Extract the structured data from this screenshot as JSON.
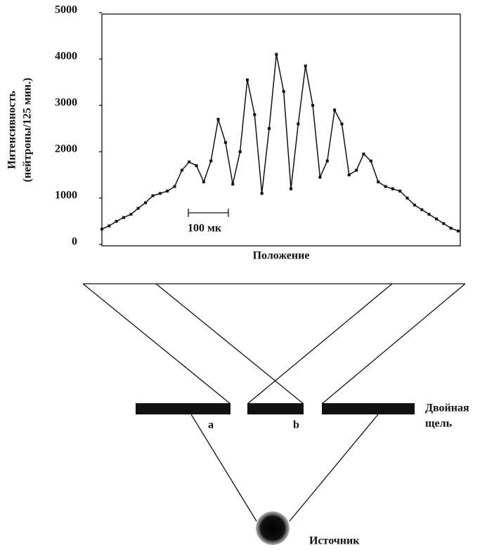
{
  "chart_data": {
    "type": "line",
    "ylabel": [
      "Интенсивность",
      "(нейтроны/125 мин.)"
    ],
    "xlabel": "Положение",
    "annotation": "100 мк",
    "ylim": [
      0,
      5000
    ],
    "yticks": [
      0,
      1000,
      2000,
      3000,
      4000,
      5000
    ],
    "color": "#111111",
    "values": [
      330,
      400,
      500,
      580,
      650,
      780,
      900,
      1050,
      1100,
      1150,
      1250,
      1600,
      1780,
      1700,
      1350,
      1800,
      2700,
      2200,
      1300,
      2000,
      3550,
      2800,
      1100,
      2500,
      4100,
      3300,
      1200,
      2600,
      3850,
      3000,
      1450,
      1800,
      2900,
      2600,
      1500,
      1600,
      1950,
      1800,
      1350,
      1250,
      1200,
      1150,
      1000,
      850,
      750,
      650,
      550,
      450,
      350,
      290
    ]
  },
  "diagram": {
    "slit_a": "a",
    "slit_b": "b",
    "slit_label": [
      "Двойная",
      "щель"
    ],
    "source_label": "Источник"
  }
}
